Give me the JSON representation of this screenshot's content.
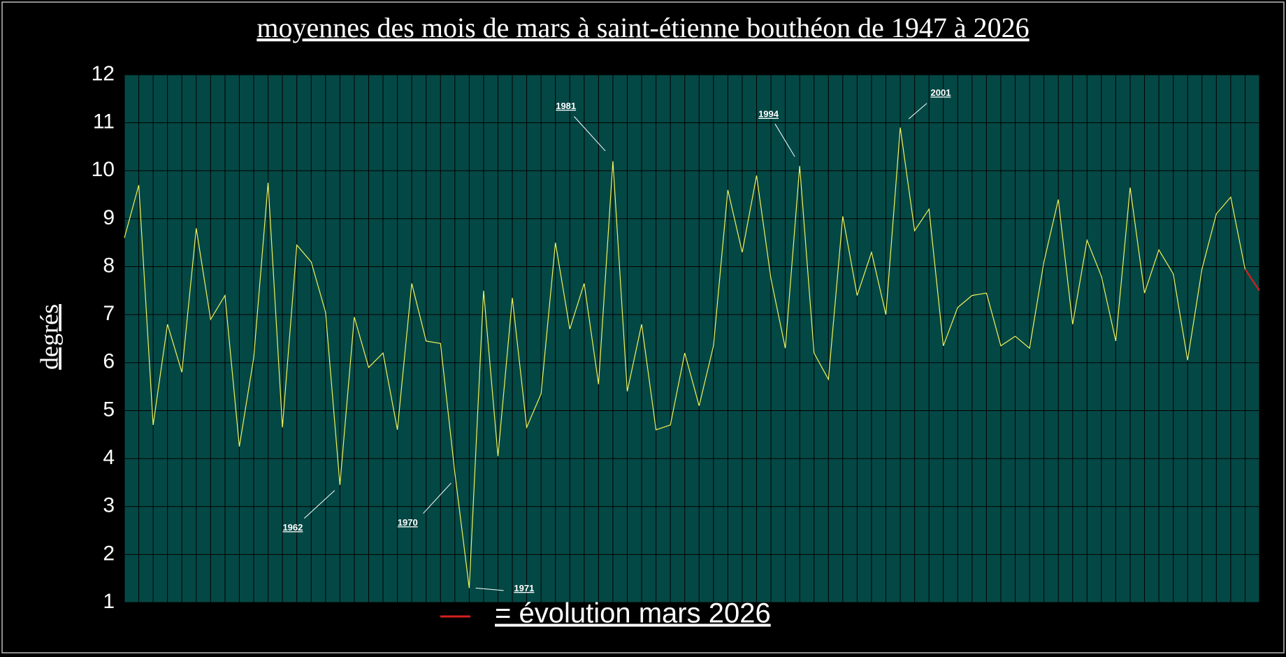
{
  "chart_data": {
    "type": "line",
    "title": "moyennes des mois de mars à saint-étienne bouthéon de 1947 à 2026",
    "ylabel": "degrés",
    "categories": [
      null,
      null,
      null,
      null,
      null,
      null,
      null,
      null,
      null,
      null,
      null,
      null,
      null,
      null,
      null,
      null,
      null,
      null,
      null,
      null,
      null,
      null,
      null,
      null,
      null,
      null,
      null,
      null,
      null,
      null,
      null,
      null,
      null,
      null,
      null,
      null,
      null,
      null,
      null,
      null,
      null,
      null,
      null,
      null,
      null,
      null,
      null,
      null,
      null,
      null,
      null,
      null,
      null,
      null,
      null,
      null,
      null,
      null,
      null,
      null,
      null,
      null,
      null,
      null,
      null,
      null,
      null,
      null,
      null,
      null,
      null,
      null,
      null,
      null,
      null,
      null,
      null,
      null,
      null,
      null
    ],
    "series": [
      {
        "color": "#f2f25a",
        "values": [
          8.6,
          9.7,
          4.7,
          6.8,
          5.8,
          8.8,
          6.9,
          7.4,
          4.25,
          6.1,
          9.75,
          4.65,
          8.45,
          8.1,
          7.05,
          3.45,
          6.95,
          5.9,
          6.2,
          4.6,
          7.65,
          6.45,
          6.4,
          3.7,
          1.3,
          7.5,
          4.05,
          7.35,
          4.65,
          5.35,
          8.5,
          6.7,
          7.65,
          5.55,
          10.2,
          5.4,
          6.8,
          4.6,
          4.7,
          6.2,
          5.1,
          6.35,
          9.6,
          8.3,
          9.9,
          7.75,
          6.3,
          10.1,
          6.2,
          5.65,
          9.05,
          7.4,
          8.3,
          7.0,
          10.9,
          8.75,
          9.2,
          6.35,
          7.15,
          7.4,
          7.45,
          6.35,
          6.55,
          6.3,
          8.1,
          9.4,
          6.8,
          8.55,
          7.8,
          6.45,
          9.65,
          7.45,
          8.35,
          7.85,
          6.05,
          7.95,
          9.1,
          9.45,
          7.95,
          null
        ]
      },
      {
        "name": "= évolution mars 2026",
        "color": "#d42020",
        "values": [
          null,
          null,
          null,
          null,
          null,
          null,
          null,
          null,
          null,
          null,
          null,
          null,
          null,
          null,
          null,
          null,
          null,
          null,
          null,
          null,
          null,
          null,
          null,
          null,
          null,
          null,
          null,
          null,
          null,
          null,
          null,
          null,
          null,
          null,
          null,
          null,
          null,
          null,
          null,
          null,
          null,
          null,
          null,
          null,
          null,
          null,
          null,
          null,
          null,
          null,
          null,
          null,
          null,
          null,
          null,
          null,
          null,
          null,
          null,
          null,
          null,
          null,
          null,
          null,
          null,
          null,
          null,
          null,
          null,
          null,
          null,
          null,
          null,
          null,
          null,
          null,
          null,
          null,
          7.95,
          7.5
        ]
      }
    ],
    "annotations": [
      "1962",
      "1970",
      "1971",
      "1981",
      "1994",
      "2001"
    ],
    "ylim": [
      1,
      12
    ],
    "yticks": [
      1,
      2,
      3,
      4,
      5,
      6,
      7,
      8,
      9,
      10,
      11,
      12
    ],
    "grid": true,
    "background": "#044845"
  }
}
